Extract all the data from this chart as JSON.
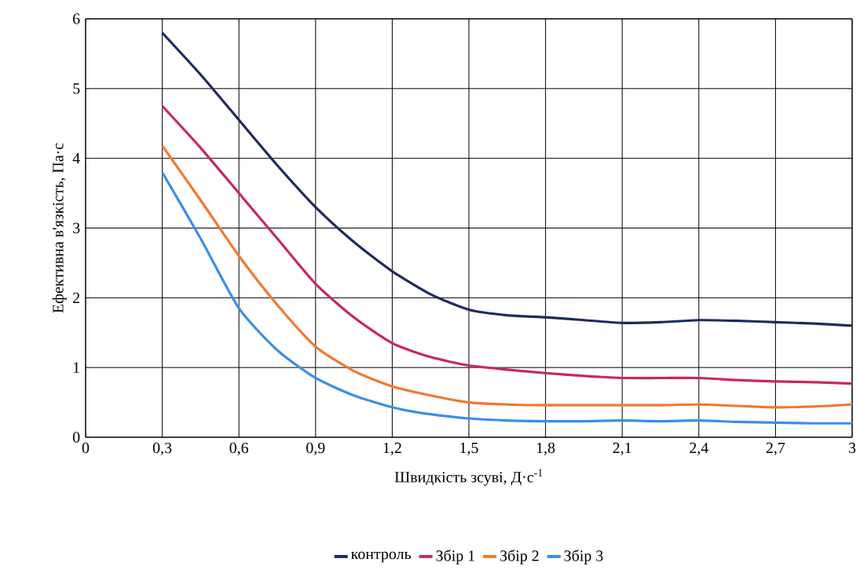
{
  "chart_data": {
    "type": "line",
    "xlabel": "Швидкість зсуві, Д·с$^{-1}$",
    "ylabel": "Ефективна в'язкість, Па·с",
    "x": [
      0.3,
      0.45,
      0.6,
      0.75,
      0.9,
      1.05,
      1.2,
      1.35,
      1.5,
      1.65,
      1.8,
      1.95,
      2.1,
      2.25,
      2.4,
      2.55,
      2.7,
      2.85,
      3
    ],
    "series": [
      {
        "name": "контроль",
        "color": "#1f2a5c",
        "values": [
          5.8,
          5.2,
          4.55,
          3.9,
          3.3,
          2.8,
          2.38,
          2.05,
          1.83,
          1.75,
          1.72,
          1.68,
          1.64,
          1.65,
          1.68,
          1.67,
          1.65,
          1.63,
          1.6
        ]
      },
      {
        "name": "Збір 1",
        "color": "#c8285a",
        "values": [
          4.75,
          4.15,
          3.5,
          2.85,
          2.2,
          1.72,
          1.35,
          1.15,
          1.03,
          0.97,
          0.92,
          0.88,
          0.85,
          0.85,
          0.85,
          0.82,
          0.8,
          0.79,
          0.77
        ]
      },
      {
        "name": "Збір 2",
        "color": "#f07830",
        "values": [
          4.18,
          3.4,
          2.6,
          1.9,
          1.3,
          0.95,
          0.73,
          0.6,
          0.5,
          0.47,
          0.46,
          0.46,
          0.46,
          0.46,
          0.47,
          0.45,
          0.43,
          0.44,
          0.47
        ]
      },
      {
        "name": "Збір 3",
        "color": "#3a8ee6",
        "values": [
          3.8,
          2.85,
          1.85,
          1.25,
          0.85,
          0.6,
          0.43,
          0.33,
          0.27,
          0.24,
          0.23,
          0.23,
          0.24,
          0.23,
          0.24,
          0.22,
          0.21,
          0.2,
          0.2
        ]
      }
    ],
    "xlim": [
      0,
      3
    ],
    "ylim": [
      0,
      6
    ],
    "xticks": [
      0,
      {
        "value": 0.3,
        "label": "0,3"
      },
      {
        "value": 0.6,
        "label": "0,6"
      },
      {
        "value": 0.9,
        "label": "0,9"
      },
      {
        "value": 1.2,
        "label": "1,2"
      },
      {
        "value": 1.5,
        "label": "1,5"
      },
      {
        "value": 1.8,
        "label": "1,8"
      },
      {
        "value": 2.1,
        "label": "2,1"
      },
      {
        "value": 2.4,
        "label": "2,4"
      },
      {
        "value": 2.7,
        "label": "2,7"
      },
      3
    ],
    "yticks": [
      0,
      1,
      2,
      3,
      4,
      5,
      6
    ],
    "grid": true,
    "legend": "bottom"
  }
}
